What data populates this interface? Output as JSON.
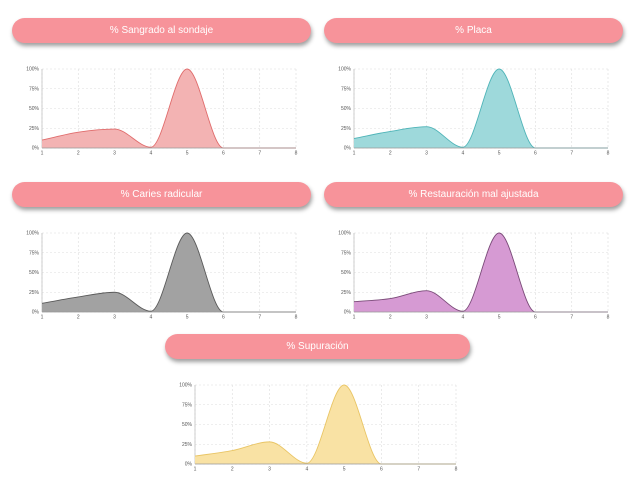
{
  "charts": [
    {
      "title": "% Sangrado al sondaje",
      "colors": {
        "fill": "#f3b3b3",
        "stroke": "#e06c6c"
      },
      "chart_data": {
        "type": "area",
        "x": [
          1,
          2,
          3,
          4,
          5,
          6,
          7,
          8
        ],
        "values": [
          10,
          20,
          24,
          1,
          100,
          0,
          0,
          0
        ],
        "xlim": [
          1,
          8
        ],
        "ylim": [
          0,
          100
        ],
        "xticks": [
          "1",
          "2",
          "3",
          "4",
          "5",
          "6",
          "7",
          "8"
        ],
        "yticks": [
          "0%",
          "25%",
          "50%",
          "75%",
          "100%"
        ],
        "grid": true
      }
    },
    {
      "title": "% Placa",
      "colors": {
        "fill": "#9ed9db",
        "stroke": "#4fb4b8"
      },
      "chart_data": {
        "type": "area",
        "x": [
          1,
          2,
          3,
          4,
          5,
          6,
          7,
          8
        ],
        "values": [
          12,
          21,
          27,
          1,
          100,
          0,
          0,
          0
        ],
        "xlim": [
          1,
          8
        ],
        "ylim": [
          0,
          100
        ],
        "xticks": [
          "1",
          "2",
          "3",
          "4",
          "5",
          "6",
          "7",
          "8"
        ],
        "yticks": [
          "0%",
          "25%",
          "50%",
          "75%",
          "100%"
        ],
        "grid": true
      }
    },
    {
      "title": "% Caries radicular",
      "colors": {
        "fill": "#a2a2a2",
        "stroke": "#5a5a5a"
      },
      "chart_data": {
        "type": "area",
        "x": [
          1,
          2,
          3,
          4,
          5,
          6,
          7,
          8
        ],
        "values": [
          11,
          19,
          25,
          1,
          100,
          0,
          0,
          0
        ],
        "xlim": [
          1,
          8
        ],
        "ylim": [
          0,
          100
        ],
        "xticks": [
          "1",
          "2",
          "3",
          "4",
          "5",
          "6",
          "7",
          "8"
        ],
        "yticks": [
          "0%",
          "25%",
          "50%",
          "75%",
          "100%"
        ],
        "grid": true
      }
    },
    {
      "title": "% Restauración mal ajustada",
      "colors": {
        "fill": "#d69ad3",
        "stroke": "#7a4a78"
      },
      "chart_data": {
        "type": "area",
        "x": [
          1,
          2,
          3,
          4,
          5,
          6,
          7,
          8
        ],
        "values": [
          13,
          17,
          27,
          1,
          100,
          0,
          0,
          0
        ],
        "xlim": [
          1,
          8
        ],
        "ylim": [
          0,
          100
        ],
        "xticks": [
          "1",
          "2",
          "3",
          "4",
          "5",
          "6",
          "7",
          "8"
        ],
        "yticks": [
          "0%",
          "25%",
          "50%",
          "75%",
          "100%"
        ],
        "grid": true
      }
    },
    {
      "title": "% Supuración",
      "colors": {
        "fill": "#f9e2a4",
        "stroke": "#e9c565"
      },
      "chart_data": {
        "type": "area",
        "x": [
          1,
          2,
          3,
          4,
          5,
          6,
          7,
          8
        ],
        "values": [
          10,
          17,
          28,
          1,
          100,
          0,
          0,
          0
        ],
        "xlim": [
          1,
          8
        ],
        "ylim": [
          0,
          100
        ],
        "xticks": [
          "1",
          "2",
          "3",
          "4",
          "5",
          "6",
          "7",
          "8"
        ],
        "yticks": [
          "0%",
          "25%",
          "50%",
          "75%",
          "100%"
        ],
        "grid": true
      }
    }
  ]
}
